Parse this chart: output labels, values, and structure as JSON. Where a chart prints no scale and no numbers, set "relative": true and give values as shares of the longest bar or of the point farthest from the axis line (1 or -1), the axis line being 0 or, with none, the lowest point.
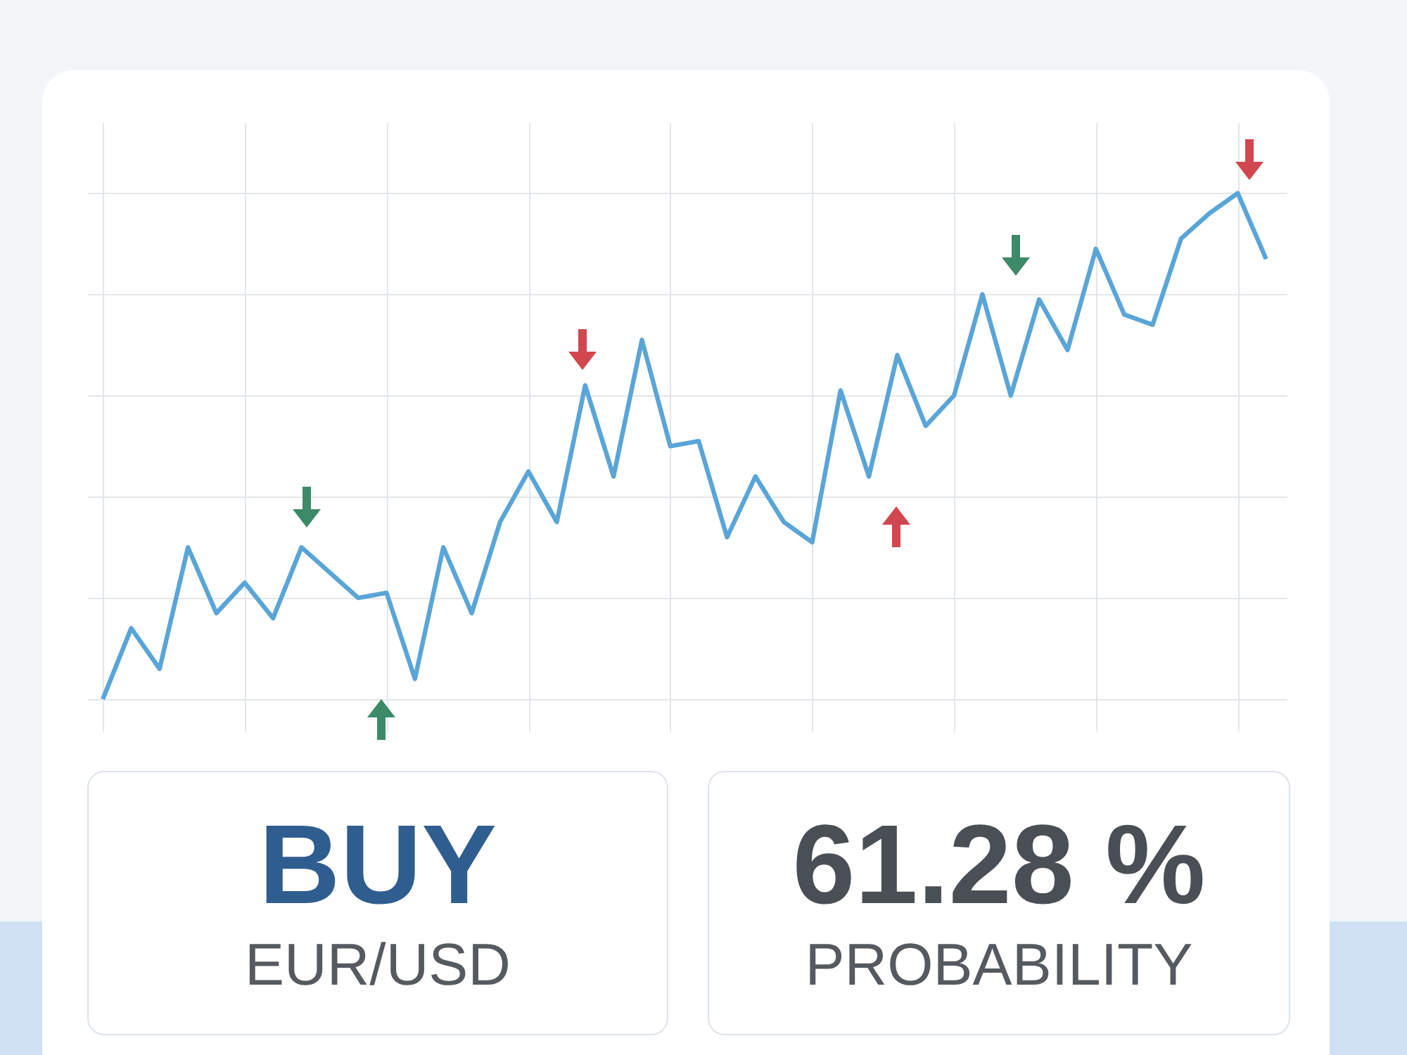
{
  "chart_data": [
    {
      "type": "line",
      "relative": true,
      "grid": true,
      "line_style": "solid",
      "categories": [
        null,
        null,
        null,
        null,
        null,
        null,
        null,
        null,
        null,
        null,
        null,
        null,
        null,
        null,
        null,
        null,
        null,
        null,
        null,
        null,
        null,
        null,
        null,
        null,
        null,
        null,
        null,
        null,
        null,
        null,
        null,
        null,
        null,
        null,
        null,
        null,
        null,
        null,
        null,
        null,
        null,
        null
      ],
      "series": [
        {
          "color": "#5aa5d8",
          "values": [
            0,
            0.14,
            0.06,
            0.3,
            0.17,
            0.23,
            0.16,
            0.3,
            0.25,
            0.2,
            0.21,
            0.04,
            0.3,
            0.17,
            0.35,
            0.45,
            0.35,
            0.62,
            0.44,
            0.71,
            0.5,
            0.51,
            0.32,
            0.44,
            0.35,
            0.31,
            0.61,
            0.44,
            0.68,
            0.54,
            0.6,
            0.8,
            0.6,
            0.79,
            0.69,
            0.89,
            0.76,
            0.74,
            0.91,
            0.96,
            1,
            0.87
          ]
        }
      ]
    },
    {
      "type": "other",
      "annotations": [
        "BUY",
        "EUR/USD",
        "61.28 %",
        "PROBABILITY"
      ]
    }
  ]
}
